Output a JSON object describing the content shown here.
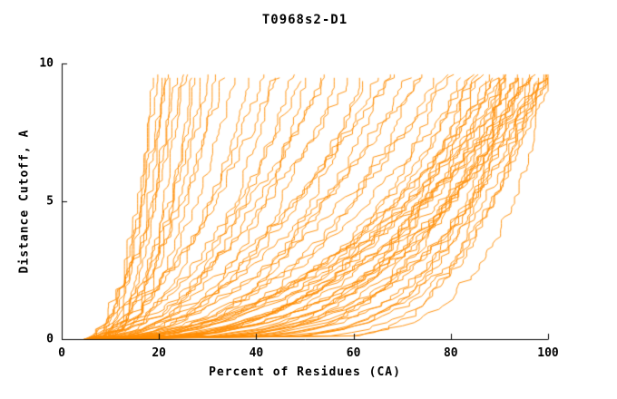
{
  "chart_data": {
    "type": "line",
    "title": "T0968s2-D1",
    "xlabel": "Percent of Residues (CA)",
    "ylabel": "Distance Cutoff, A",
    "xlim": [
      0,
      100
    ],
    "ylim": [
      0,
      10
    ],
    "x_ticks": [
      0,
      20,
      40,
      60,
      80,
      100
    ],
    "y_ticks": [
      0,
      5,
      10
    ],
    "grid": false,
    "legend": "none",
    "line_color": "#FF8C00",
    "axis_color": "#000000",
    "background_color": "#FFFFFF",
    "y_top": 9.7,
    "curves_note": "Each curve: cumulative percent of CA residues (x) under distance cutoff (y); x(y)=x0+(xf-x0)*(y/ytop)^e with jagged jitter",
    "curves": [
      {
        "x0": 4.8,
        "xf": 18,
        "e": 0.3,
        "seed": 11
      },
      {
        "x0": 5.0,
        "xf": 19,
        "e": 0.45,
        "seed": 12
      },
      {
        "x0": 5.2,
        "xf": 20,
        "e": 0.28,
        "seed": 13
      },
      {
        "x0": 5.0,
        "xf": 20.5,
        "e": 0.5,
        "seed": 14
      },
      {
        "x0": 5.0,
        "xf": 21,
        "e": 0.55,
        "seed": 15
      },
      {
        "x0": 5.4,
        "xf": 22,
        "e": 0.35,
        "seed": 16
      },
      {
        "x0": 5.1,
        "xf": 23,
        "e": 0.5,
        "seed": 17
      },
      {
        "x0": 5.3,
        "xf": 24,
        "e": 0.33,
        "seed": 18
      },
      {
        "x0": 5.0,
        "xf": 25,
        "e": 0.6,
        "seed": 19
      },
      {
        "x0": 5.2,
        "xf": 26,
        "e": 0.3,
        "seed": 20
      },
      {
        "x0": 5.2,
        "xf": 27,
        "e": 0.4,
        "seed": 21
      },
      {
        "x0": 5.5,
        "xf": 29,
        "e": 0.52,
        "seed": 22
      },
      {
        "x0": 5.1,
        "xf": 30,
        "e": 0.47,
        "seed": 23
      },
      {
        "x0": 5.1,
        "xf": 31,
        "e": 0.38,
        "seed": 24
      },
      {
        "x0": 5.3,
        "xf": 33,
        "e": 0.58,
        "seed": 25
      },
      {
        "x0": 5.0,
        "xf": 35,
        "e": 0.45,
        "seed": 26
      },
      {
        "x0": 5.2,
        "xf": 38,
        "e": 0.42,
        "seed": 31
      },
      {
        "x0": 5.6,
        "xf": 41,
        "e": 0.55,
        "seed": 32
      },
      {
        "x0": 5.0,
        "xf": 43,
        "e": 0.35,
        "seed": 33
      },
      {
        "x0": 5.3,
        "xf": 44,
        "e": 0.62,
        "seed": 34
      },
      {
        "x0": 5.8,
        "xf": 47,
        "e": 0.4,
        "seed": 35
      },
      {
        "x0": 5.1,
        "xf": 49,
        "e": 0.55,
        "seed": 36
      },
      {
        "x0": 5.4,
        "xf": 50,
        "e": 0.33,
        "seed": 37
      },
      {
        "x0": 5.7,
        "xf": 53,
        "e": 0.5,
        "seed": 38
      },
      {
        "x0": 5.2,
        "xf": 55,
        "e": 0.62,
        "seed": 39
      },
      {
        "x0": 5.5,
        "xf": 56,
        "e": 0.38,
        "seed": 40
      },
      {
        "x0": 5.0,
        "xf": 59,
        "e": 0.58,
        "seed": 41
      },
      {
        "x0": 5.9,
        "xf": 61,
        "e": 0.3,
        "seed": 42
      },
      {
        "x0": 5.3,
        "xf": 62,
        "e": 0.44,
        "seed": 43
      },
      {
        "x0": 5.6,
        "xf": 65,
        "e": 0.52,
        "seed": 44
      },
      {
        "x0": 5.1,
        "xf": 67,
        "e": 0.36,
        "seed": 45
      },
      {
        "x0": 5.4,
        "xf": 68,
        "e": 0.6,
        "seed": 46
      },
      {
        "x0": 5.8,
        "xf": 71,
        "e": 0.46,
        "seed": 47
      },
      {
        "x0": 5.2,
        "xf": 73,
        "e": 0.34,
        "seed": 48
      },
      {
        "x0": 5.5,
        "xf": 74,
        "e": 0.56,
        "seed": 49
      },
      {
        "x0": 5.0,
        "xf": 77,
        "e": 0.42,
        "seed": 50
      },
      {
        "x0": 5.6,
        "xf": 79,
        "e": 0.3,
        "seed": 51
      },
      {
        "x0": 5.3,
        "xf": 80,
        "e": 0.54,
        "seed": 52
      },
      {
        "x0": 5.1,
        "xf": 82,
        "e": 0.3,
        "seed": 61
      },
      {
        "x0": 5.5,
        "xf": 83,
        "e": 0.22,
        "seed": 62
      },
      {
        "x0": 5.2,
        "xf": 84,
        "e": 0.48,
        "seed": 63
      },
      {
        "x0": 5.7,
        "xf": 85,
        "e": 0.22,
        "seed": 64
      },
      {
        "x0": 5.0,
        "xf": 85,
        "e": 0.4,
        "seed": 65
      },
      {
        "x0": 5.4,
        "xf": 86,
        "e": 0.32,
        "seed": 66
      },
      {
        "x0": 5.8,
        "xf": 87,
        "e": 0.18,
        "seed": 67
      },
      {
        "x0": 5.1,
        "xf": 88,
        "e": 0.34,
        "seed": 68
      },
      {
        "x0": 5.5,
        "xf": 88,
        "e": 0.26,
        "seed": 69
      },
      {
        "x0": 5.2,
        "xf": 89,
        "e": 0.44,
        "seed": 70
      },
      {
        "x0": 5.6,
        "xf": 90,
        "e": 0.45,
        "seed": 71
      },
      {
        "x0": 5.0,
        "xf": 90,
        "e": 0.2,
        "seed": 72
      },
      {
        "x0": 5.3,
        "xf": 90,
        "e": 0.1,
        "seed": 73
      },
      {
        "x0": 5.7,
        "xf": 91,
        "e": 0.32,
        "seed": 74
      },
      {
        "x0": 5.1,
        "xf": 91,
        "e": 0.15,
        "seed": 75
      },
      {
        "x0": 5.4,
        "xf": 92,
        "e": 0.42,
        "seed": 76
      },
      {
        "x0": 5.8,
        "xf": 92,
        "e": 0.24,
        "seed": 77
      },
      {
        "x0": 5.2,
        "xf": 93,
        "e": 0.36,
        "seed": 78
      },
      {
        "x0": 5.5,
        "xf": 93,
        "e": 0.16,
        "seed": 79
      },
      {
        "x0": 5.0,
        "xf": 94,
        "e": 0.28,
        "seed": 80
      },
      {
        "x0": 5.3,
        "xf": 94,
        "e": 0.48,
        "seed": 81
      },
      {
        "x0": 5.6,
        "xf": 95,
        "e": 0.2,
        "seed": 82
      },
      {
        "x0": 5.1,
        "xf": 95,
        "e": 0.38,
        "seed": 83
      },
      {
        "x0": 5.4,
        "xf": 96,
        "e": 0.14,
        "seed": 84
      },
      {
        "x0": 5.7,
        "xf": 96,
        "e": 0.3,
        "seed": 85
      },
      {
        "x0": 5.2,
        "xf": 97,
        "e": 0.24,
        "seed": 86
      },
      {
        "x0": 5.5,
        "xf": 97,
        "e": 0.44,
        "seed": 87
      },
      {
        "x0": 5.0,
        "xf": 98,
        "e": 0.17,
        "seed": 88
      },
      {
        "x0": 5.3,
        "xf": 98,
        "e": 0.34,
        "seed": 89
      },
      {
        "x0": 5.6,
        "xf": 99,
        "e": 0.22,
        "seed": 90
      },
      {
        "x0": 5.1,
        "xf": 99,
        "e": 0.4,
        "seed": 91
      },
      {
        "x0": 5.4,
        "xf": 100,
        "e": 0.13,
        "seed": 92
      },
      {
        "x0": 5.7,
        "xf": 100,
        "e": 0.28,
        "seed": 93
      },
      {
        "x0": 5.2,
        "xf": 100,
        "e": 0.5,
        "seed": 94
      },
      {
        "x0": 5.5,
        "xf": 100,
        "e": 0.36,
        "seed": 95
      },
      {
        "x0": 5.0,
        "xf": 99.5,
        "e": 0.19,
        "seed": 96
      },
      {
        "x0": 5.3,
        "xf": 98.5,
        "e": 0.26,
        "seed": 97
      },
      {
        "x0": 5.6,
        "xf": 96.5,
        "e": 0.33,
        "seed": 98
      }
    ]
  }
}
